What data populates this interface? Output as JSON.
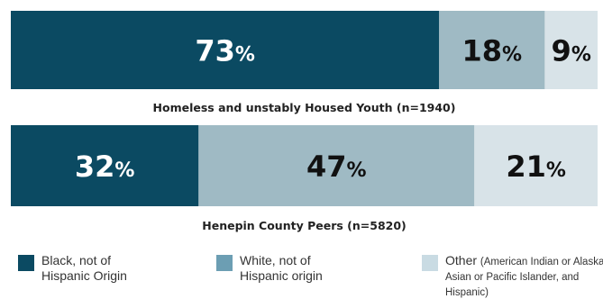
{
  "chart_data": {
    "type": "bar",
    "orientation": "horizontal",
    "stacked": true,
    "percent": true,
    "grid": false,
    "legend_position": "bottom",
    "categories": [
      "Homeless and unstably Housed Youth (n=1940)",
      "Henepin County Peers (n=5820)"
    ],
    "series": [
      {
        "name": "Black, not of Hispanic Origin",
        "color": "#0b4a62",
        "label_color": "#ffffff",
        "values": [
          73,
          32
        ]
      },
      {
        "name": "White, not of Hispanic origin",
        "color": "#9fbac4",
        "label_color": "#111111",
        "values": [
          18,
          47
        ]
      },
      {
        "name": "Other (American Indian or Alaskan, Asian or Pacific Islander, and Hispanic)",
        "color": "#d8e3e8",
        "label_color": "#111111",
        "values": [
          9,
          21
        ]
      }
    ]
  },
  "legend": [
    {
      "line1": "Black, not of",
      "line2": "Hispanic  Origin",
      "swatch": "#0b4a62"
    },
    {
      "line1": "White, not of",
      "line2": "Hispanic origin",
      "swatch": "#6c9eb3"
    },
    {
      "line1": "Other",
      "note": "(American Indian or Alaskan, Asian or Pacific Islander, and Hispanic)",
      "swatch": "#c9dbe3"
    }
  ]
}
